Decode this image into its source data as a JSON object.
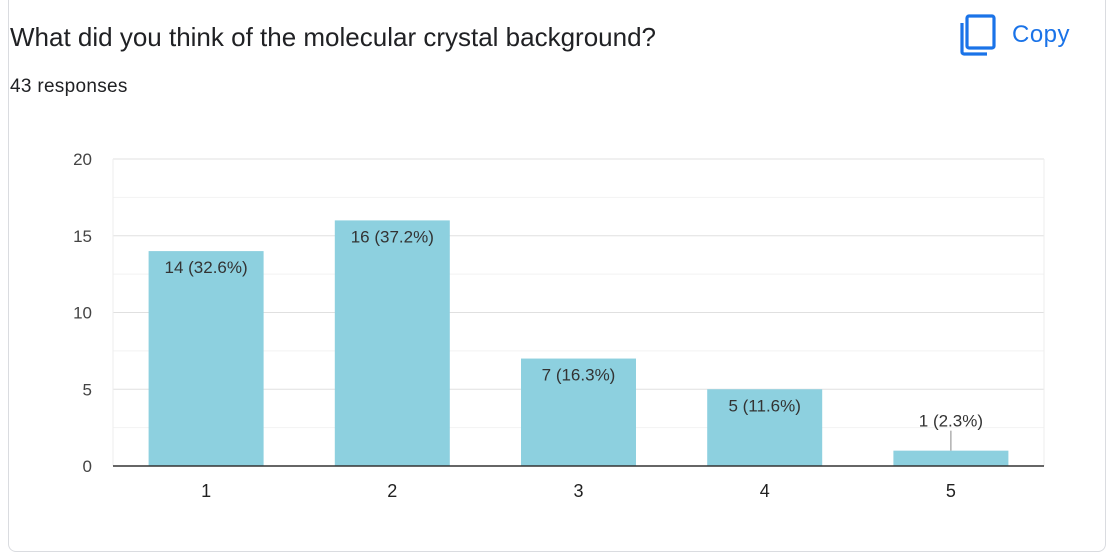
{
  "header": {
    "title": "What did you think of the molecular crystal background?",
    "responses": "43 responses",
    "copy_label": "Copy",
    "copy_icon": "copy-icon",
    "accent_color": "#1a73e8"
  },
  "chart_data": {
    "type": "bar",
    "categories": [
      "1",
      "2",
      "3",
      "4",
      "5"
    ],
    "values": [
      14,
      16,
      7,
      5,
      1
    ],
    "data_labels": [
      "14 (32.6%)",
      "16 (37.2%)",
      "7 (16.3%)",
      "5 (11.6%)",
      "1 (2.3%)"
    ],
    "y_ticks": [
      "0",
      "5",
      "10",
      "15",
      "20"
    ],
    "ylim": [
      0,
      20
    ],
    "grid": true,
    "bar_color": "#8dd0df",
    "title": "",
    "xlabel": "",
    "ylabel": ""
  }
}
